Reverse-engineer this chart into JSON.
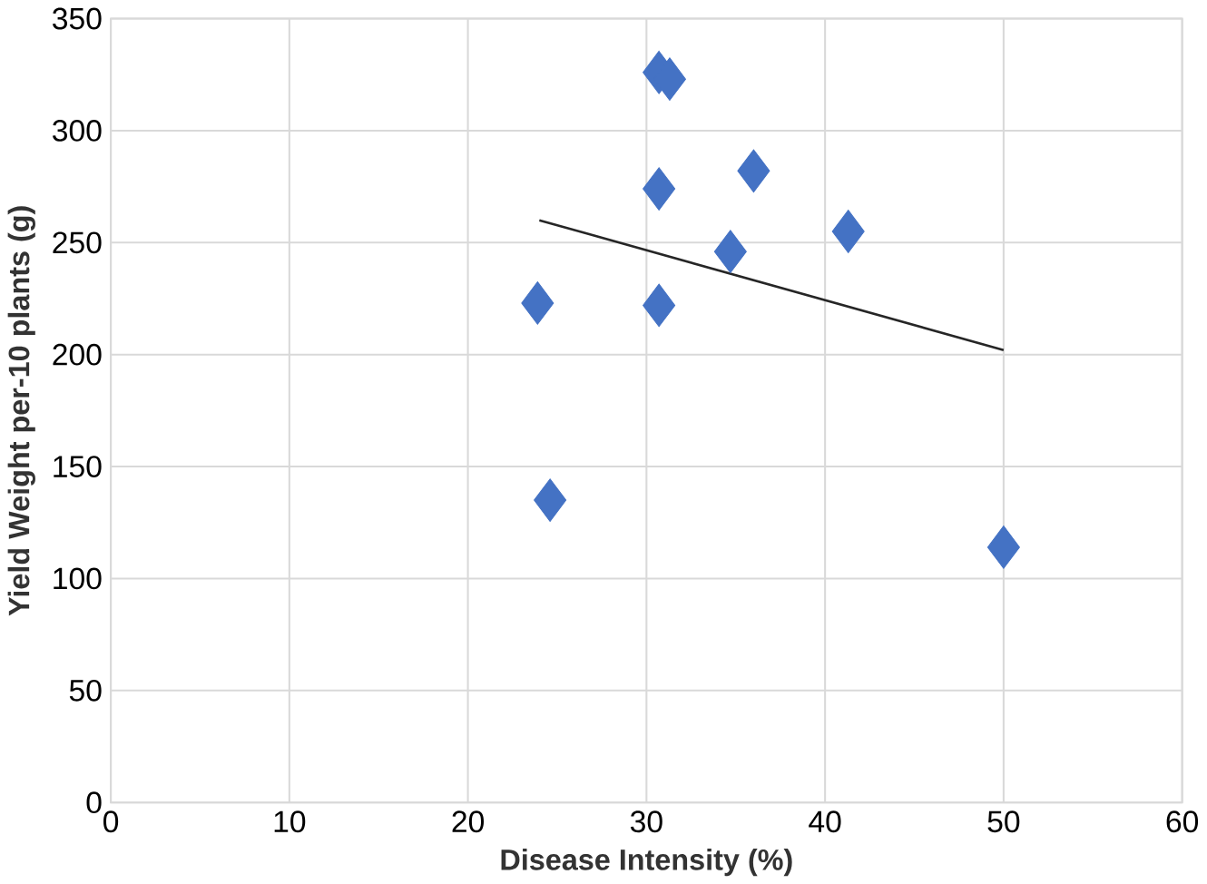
{
  "chart_data": {
    "type": "scatter",
    "xlabel": "Disease Intensity (%)",
    "ylabel": "Yield Weight per-10 plants (g)",
    "series": [
      {
        "color": "#4472c4",
        "marker": "diamond",
        "x": [
          30.7,
          31.3,
          30.7,
          30.7,
          23.9,
          24.6,
          34.7,
          36.0,
          41.3,
          50.0
        ],
        "values": [
          326,
          323,
          274,
          222,
          223,
          135,
          246,
          282,
          255,
          114
        ]
      },
      {
        "type": "line",
        "color": "#262626",
        "marker": "none",
        "x": [
          24,
          50
        ],
        "values": [
          260,
          202
        ]
      }
    ],
    "xlim": [
      0,
      60
    ],
    "xticks": [
      0,
      10,
      20,
      30,
      40,
      50,
      60
    ],
    "ylim": [
      0,
      350
    ],
    "yticks": [
      0,
      50,
      100,
      150,
      200,
      250,
      300,
      350
    ],
    "grid": true
  }
}
